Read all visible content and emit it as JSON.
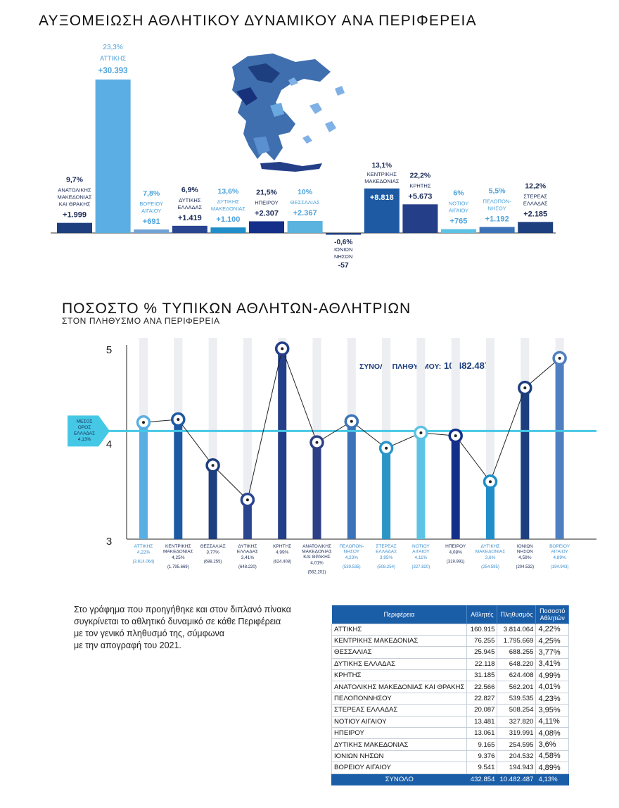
{
  "bar_title": "ΑΥΞΟΜΕΙΩΣΗ ΑΘΛΗΤΙΚΟΥ ΔΥΝΑΜΙΚΟΥ ΑΝΑ ΠΕΡΙΦΕΡΕΙΑ",
  "line_title": "ΠΟΣΟΣΤΟ % ΤΥΠΙΚΩΝ ΑΘΛΗΤΩΝ-ΑΘΛΗΤΡΙΩΝ",
  "line_subtitle": "ΣΤΟΝ ΠΛΗΘΥΣΜΟ ΑΝΑ ΠΕΡΙΦΕΡΕΙΑ",
  "population_label": "ΣΥΝΟΛΟ ΠΛΗΘΥΣΜΟΥ:",
  "population_value": "10.482.487",
  "mean_label": [
    "ΜΕΣΟΣ",
    "ΟΡΟΣ",
    "ΕΛΛΑΔΑΣ",
    "4,13%"
  ],
  "description": "Στο γράφημα που προηγήθηκε και στον διπλανό πίνακα\nσυγκρίνεται το αθλητικό δυναμικό σε κάθε Περιφέρεια\nμε τον γενικό πληθυσμό της, σύμφωνα\nμε την απογραφή του 2021.",
  "colors": {
    "primary": "#1b5ea8",
    "mean_line": "#45c8e6",
    "map_shape": "#3f6fae"
  },
  "chart_data": [
    {
      "type": "bar",
      "title": "ΑΥΞΟΜΕΙΩΣΗ ΑΘΛΗΤΙΚΟΥ ΔΥΝΑΜΙΚΟΥ ΑΝΑ ΠΕΡΙΦΕΡΕΙΑ",
      "bars": [
        {
          "label": [
            "ΑΝΑΤΟΛΙΚΗΣ",
            "ΜΑΚΕΔΟΝΙΑΣ",
            "ΚΑΙ ΘΡΑΚΗΣ"
          ],
          "pct": "9,7%",
          "change_label": "+1.999",
          "value": 1999,
          "color": "#1e3f7f"
        },
        {
          "label": [
            "ΑΤΤΙΚΗΣ"
          ],
          "pct": "23,3%",
          "change_label": "+30.393",
          "value": 30393,
          "color": "#5aaee3"
        },
        {
          "label": [
            "ΒΟΡΕΙΟΥ",
            "ΑΙΓΑΙΟΥ"
          ],
          "pct": "7,8%",
          "change_label": "+691",
          "value": 691,
          "color": "#6fa3d6"
        },
        {
          "label": [
            "ΔΥΤΙΚΗΣ",
            "ΕΛΛΑΔΑΣ"
          ],
          "pct": "6,9%",
          "change_label": "+1.419",
          "value": 1419,
          "color": "#2a4590"
        },
        {
          "label": [
            "ΔΥΤΙΚΗΣ",
            "ΜΑΚΕΔΟΝΙΑΣ"
          ],
          "pct": "13,6%",
          "change_label": "+1.100",
          "value": 1100,
          "color": "#1f8ec9"
        },
        {
          "label": [
            "ΗΠΕΙΡΟΥ"
          ],
          "pct": "21,5%",
          "change_label": "+2.307",
          "value": 2307,
          "color": "#142f8a"
        },
        {
          "label": [
            "ΘΕΣΣΑΛΙΑΣ"
          ],
          "pct": "10%",
          "change_label": "+2.367",
          "value": 2367,
          "color": "#5ab2de"
        },
        {
          "label": [
            "ΙΟΝΙΩΝ",
            "ΝΗΣΩΝ"
          ],
          "pct": "-0,6%",
          "change_label": "-57",
          "value": -57,
          "color": "#1e3f7f"
        },
        {
          "label": [
            "ΚΕΝΤΡΙΚΗΣ",
            "ΜΑΚΕΔΟΝΙΑΣ"
          ],
          "pct": "13,1%",
          "change_label": "+8.818",
          "value": 8818,
          "color": "#1d5aa3"
        },
        {
          "label": [
            "ΚΡΗΤΗΣ"
          ],
          "pct": "22,2%",
          "change_label": "+5.673",
          "value": 5673,
          "color": "#243f88"
        },
        {
          "label": [
            "ΝΟΤΙΟΥ",
            "ΑΙΓΑΙΟΥ"
          ],
          "pct": "6%",
          "change_label": "+765",
          "value": 765,
          "color": "#5cc3e4"
        },
        {
          "label": [
            "ΠΕΛΟΠΟΝ-",
            "ΝΗΣΟΥ"
          ],
          "pct": "5,5%",
          "change_label": "+1.192",
          "value": 1192,
          "color": "#3c73b8"
        },
        {
          "label": [
            "ΣΤΕΡΕΑΣ",
            "ΕΛΛΑΔΑΣ"
          ],
          "pct": "12,2%",
          "change_label": "+2.185",
          "value": 2185,
          "color": "#1e3f7f"
        }
      ]
    },
    {
      "type": "line",
      "title": "ΠΟΣΟΣΤΟ % ΤΥΠΙΚΩΝ ΑΘΛΗΤΩΝ-ΑΘΛΗΤΡΙΩΝ",
      "ylim": [
        3,
        5
      ],
      "yticks": [
        "3",
        "4",
        "5"
      ],
      "mean": 4.13,
      "points": [
        {
          "label": [
            "ΑΤΤΙΚΗΣ"
          ],
          "pct": "4,22%",
          "value": 4.22,
          "pop": "(3.814.064)",
          "color": "#5aaee3"
        },
        {
          "label": [
            "ΚΕΝΤΡΙΚΗΣ",
            "ΜΑΚΕΔΟΝΙΑΣ"
          ],
          "pct": "4,25%",
          "value": 4.25,
          "pop": "(1.795.669)",
          "color": "#1d5aa3"
        },
        {
          "label": [
            "ΘΕΣΣΑΛΙΑΣ"
          ],
          "pct": "3,77%",
          "value": 3.77,
          "pop": "(688.255)",
          "color": "#1e3f7f"
        },
        {
          "label": [
            "ΔΥΤΙΚΗΣ",
            "ΕΛΛΑΔΑΣ"
          ],
          "pct": "3,41%",
          "value": 3.41,
          "pop": "(648.220)",
          "color": "#2a4590"
        },
        {
          "label": [
            "ΚΡΗΤΗΣ"
          ],
          "pct": "4,99%",
          "value": 4.99,
          "pop": "(624.408)",
          "color": "#243f88"
        },
        {
          "label": [
            "ΑΝΑΤΟΛΙΚΗΣ",
            "ΜΑΚΕΔΟΝΙΑΣ",
            "ΚΑΙ ΘΡΑΚΗΣ"
          ],
          "pct": "4,01%",
          "value": 4.01,
          "pop": "(562.201)",
          "color": "#2d3f86"
        },
        {
          "label": [
            "ΠΕΛΟΠΟΝ-",
            "ΝΗΣΟΥ"
          ],
          "pct": "4,23%",
          "value": 4.23,
          "pop": "(539.535)",
          "color": "#3c73b8"
        },
        {
          "label": [
            "ΣΤΕΡΕΑΣ",
            "ΕΛΛΑΔΑΣ"
          ],
          "pct": "3,95%",
          "value": 3.95,
          "pop": "(508.254)",
          "color": "#2b95c6"
        },
        {
          "label": [
            "ΝΟΤΙΟΥ",
            "ΑΙΓΑΙΟΥ"
          ],
          "pct": "4,11%",
          "value": 4.11,
          "pop": "(327.820)",
          "color": "#5cc3e4"
        },
        {
          "label": [
            "ΗΠΕΙΡΟΥ"
          ],
          "pct": "4,08%",
          "value": 4.08,
          "pop": "(319.991)",
          "color": "#142f8a"
        },
        {
          "label": [
            "ΔΥΤΙΚΗΣ",
            "ΜΑΚΕΔΟΝΙΑΣ"
          ],
          "pct": "3,6%",
          "value": 3.6,
          "pop": "(254.595)",
          "color": "#1f8ec9"
        },
        {
          "label": [
            "ΙΟΝΙΩΝ",
            "ΝΗΣΩΝ"
          ],
          "pct": "4,58%",
          "value": 4.58,
          "pop": "(204.532)",
          "color": "#1e3f7f"
        },
        {
          "label": [
            "ΒΟΡΕΙΟΥ",
            "ΑΙΓΑΙΟΥ"
          ],
          "pct": "4,89%",
          "value": 4.89,
          "pop": "(194.943)",
          "color": "#4f7fc0"
        }
      ]
    },
    {
      "type": "table",
      "headers": [
        "Περιφέρεια",
        "Αθλητές",
        "Πληθυσμός",
        "Ποσοστό Αθλητών"
      ],
      "rows": [
        [
          "ΑΤΤΙΚΗΣ",
          "160.915",
          "3.814.064",
          "4,22%"
        ],
        [
          "ΚΕΝΤΡΙΚΗΣ ΜΑΚΕΔΟΝΙΑΣ",
          "76.255",
          "1.795.669",
          "4,25%"
        ],
        [
          "ΘΕΣΣΑΛΙΑΣ",
          "25.945",
          "688.255",
          "3,77%"
        ],
        [
          "ΔΥΤΙΚΗΣ ΕΛΛΑΔΑΣ",
          "22.118",
          "648.220",
          "3,41%"
        ],
        [
          "ΚΡΗΤΗΣ",
          "31.185",
          "624.408",
          "4,99%"
        ],
        [
          "ΑΝΑΤΟΛΙΚΗΣ ΜΑΚΕΔΟΝΙΑΣ ΚΑΙ ΘΡΑΚΗΣ",
          "22.566",
          "562.201",
          "4,01%"
        ],
        [
          "ΠΕΛΟΠΟΝΝΗΣΟΥ",
          "22.827",
          "539.535",
          "4,23%"
        ],
        [
          "ΣΤΕΡΕΑΣ ΕΛΛΑΔΑΣ",
          "20.087",
          "508.254",
          "3,95%"
        ],
        [
          "ΝΟΤΙΟΥ ΑΙΓΑΙΟΥ",
          "13.481",
          "327.820",
          "4,11%"
        ],
        [
          "ΗΠΕΙΡΟΥ",
          "13.061",
          "319.991",
          "4,08%"
        ],
        [
          "ΔΥΤΙΚΗΣ ΜΑΚΕΔΟΝΙΑΣ",
          "9.165",
          "254.595",
          "3,6%"
        ],
        [
          "ΙΟΝΙΩΝ ΝΗΣΩΝ",
          "9.376",
          "204.532",
          "4,58%"
        ],
        [
          "ΒΟΡΕΙΟΥ ΑΙΓΑΙΟΥ",
          "9.541",
          "194.943",
          "4,89%"
        ]
      ],
      "total": [
        "ΣΥΝΟΛΟ",
        "432.854",
        "10.482.487",
        "4,13%"
      ]
    }
  ]
}
